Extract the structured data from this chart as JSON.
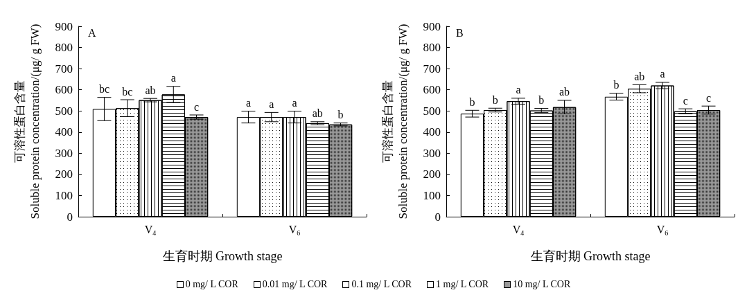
{
  "chart_data": [
    {
      "type": "bar",
      "title": "A",
      "xlabel": "生育时期 Growth stage",
      "ylabel": "可溶性蛋白含量\nSoluble protein concentration/(μg/ g FW)",
      "categories": [
        "V$_{4}$",
        "V$_{6}$"
      ],
      "ylim": [
        0,
        900
      ],
      "yticks": [
        0,
        100,
        200,
        300,
        400,
        500,
        600,
        700,
        800,
        900
      ],
      "grid": false,
      "legend": "bottom",
      "series": [
        {
          "name": "0 mg/ L COR",
          "color": "#ffffff",
          "values": [
            509,
            471
          ],
          "errors": [
            55,
            28
          ],
          "value_labels": [
            "bc",
            "a"
          ]
        },
        {
          "name": "0.01 mg/ L COR",
          "color": "#ffffff",
          "values": [
            513,
            471
          ],
          "errors": [
            40,
            22
          ],
          "value_labels": [
            "bc",
            "a"
          ]
        },
        {
          "name": "0.1 mg/ L COR",
          "color": "#ffffff",
          "values": [
            551,
            471
          ],
          "errors": [
            8,
            28
          ],
          "value_labels": [
            "ab",
            "a"
          ]
        },
        {
          "name": "1 mg/ L COR",
          "color": "#ffffff",
          "values": [
            578,
            442
          ],
          "errors": [
            38,
            7
          ],
          "value_labels": [
            "a",
            "ab"
          ]
        },
        {
          "name": "10 mg/ L COR",
          "color": "#9a9a9a",
          "values": [
            471,
            436
          ],
          "errors": [
            10,
            7
          ],
          "value_labels": [
            "c",
            "b"
          ]
        }
      ]
    },
    {
      "type": "bar",
      "title": "B",
      "xlabel": "生育时期 Growth stage",
      "ylabel": "可溶性蛋白含量\nSoluble protein concentration/(μg/ g FW)",
      "categories": [
        "V$_{4}$",
        "V$_{6}$"
      ],
      "ylim": [
        0,
        900
      ],
      "yticks": [
        0,
        100,
        200,
        300,
        400,
        500,
        600,
        700,
        800,
        900
      ],
      "grid": false,
      "series": [
        {
          "color": "#ffffff",
          "values": [
            487,
            567
          ],
          "errors": [
            16,
            16
          ],
          "value_labels": [
            "b",
            "b"
          ]
        },
        {
          "color": "#ffffff",
          "values": [
            504,
            605
          ],
          "errors": [
            9,
            19
          ],
          "value_labels": [
            "b",
            "ab"
          ]
        },
        {
          "color": "#ffffff",
          "values": [
            546,
            620
          ],
          "errors": [
            14,
            15
          ],
          "value_labels": [
            "a",
            "a"
          ]
        },
        {
          "color": "#ffffff",
          "values": [
            502,
            498
          ],
          "errors": [
            10,
            12
          ],
          "value_labels": [
            "b",
            "c"
          ]
        },
        {
          "color": "#9a9a9a",
          "values": [
            518,
            504
          ],
          "errors": [
            32,
            19
          ],
          "value_labels": [
            "ab",
            "c"
          ]
        }
      ]
    }
  ]
}
